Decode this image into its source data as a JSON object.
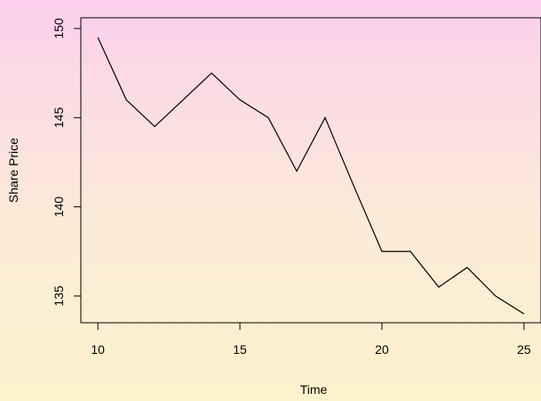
{
  "chart_data": {
    "type": "line",
    "title": "",
    "xlabel": "Time",
    "ylabel": "Share Price",
    "xlim": [
      9.4,
      25.6
    ],
    "ylim": [
      133.5,
      150.6
    ],
    "x_ticks": [
      10,
      15,
      20,
      25
    ],
    "y_ticks": [
      135,
      140,
      145,
      150
    ],
    "grid": false,
    "series": [
      {
        "x": [
          10,
          11,
          12,
          13,
          14,
          15,
          16,
          17,
          18,
          19,
          20,
          21,
          22,
          23,
          24,
          25
        ],
        "y": [
          149.5,
          146,
          144.5,
          146,
          147.5,
          146,
          145,
          142,
          145,
          141.2,
          137.5,
          137.5,
          135.5,
          136.6,
          135,
          134
        ],
        "color": "#000000"
      }
    ]
  }
}
